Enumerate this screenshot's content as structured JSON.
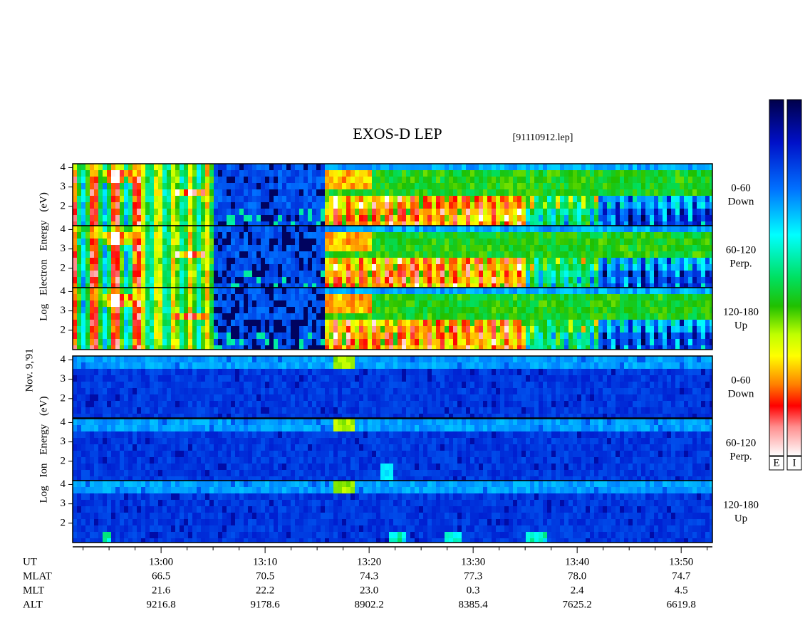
{
  "chart_data": {
    "type": "spectrogram",
    "title": "EXOS-D LEP",
    "file_label": "[91110912.lep]",
    "date_label": "Nov. 9,'91",
    "xlim": [
      771.5,
      833
    ],
    "xticks": [
      {
        "value": 780,
        "label": "13:00"
      },
      {
        "value": 790,
        "label": "13:10"
      },
      {
        "value": 800,
        "label": "13:20"
      },
      {
        "value": 810,
        "label": "13:30"
      },
      {
        "value": 820,
        "label": "13:40"
      },
      {
        "value": 830,
        "label": "13:50"
      }
    ],
    "xminorticks": [
      772.5,
      775,
      777.5,
      782.5,
      785,
      787.5,
      792.5,
      795,
      797.5,
      802.5,
      805,
      807.5,
      812.5,
      815,
      817.5,
      822.5,
      825,
      827.5,
      832.5
    ],
    "ylim": [
      1,
      4.2
    ],
    "yticks": [
      2,
      3,
      4
    ],
    "groups": [
      {
        "ylabel": "Log Electron Energy (eV)",
        "species": "electron",
        "panels": [
          {
            "label": "0-60",
            "sublabel": "Down"
          },
          {
            "label": "60-120",
            "sublabel": "Perp."
          },
          {
            "label": "120-180",
            "sublabel": "Up"
          }
        ]
      },
      {
        "ylabel": "Log Ion Energy (eV)",
        "species": "ion",
        "panels": [
          {
            "label": "0-60",
            "sublabel": "Down"
          },
          {
            "label": "60-120",
            "sublabel": "Perp."
          },
          {
            "label": "120-180",
            "sublabel": "Up"
          }
        ]
      }
    ],
    "orbit": {
      "time_label": "UT",
      "rows": [
        {
          "label": "MLAT",
          "values": [
            "66.5",
            "70.5",
            "74.3",
            "77.3",
            "78.0",
            "74.7"
          ]
        },
        {
          "label": "MLT",
          "values": [
            "21.6",
            "22.2",
            "23.0",
            "0.3",
            "2.4",
            "4.5"
          ]
        },
        {
          "label": "ALT",
          "values": [
            "9216.8",
            "9178.6",
            "8902.2",
            "8385.4",
            "7625.2",
            "6619.8"
          ]
        }
      ]
    },
    "colorbar_labels": [
      "E",
      "I"
    ]
  }
}
